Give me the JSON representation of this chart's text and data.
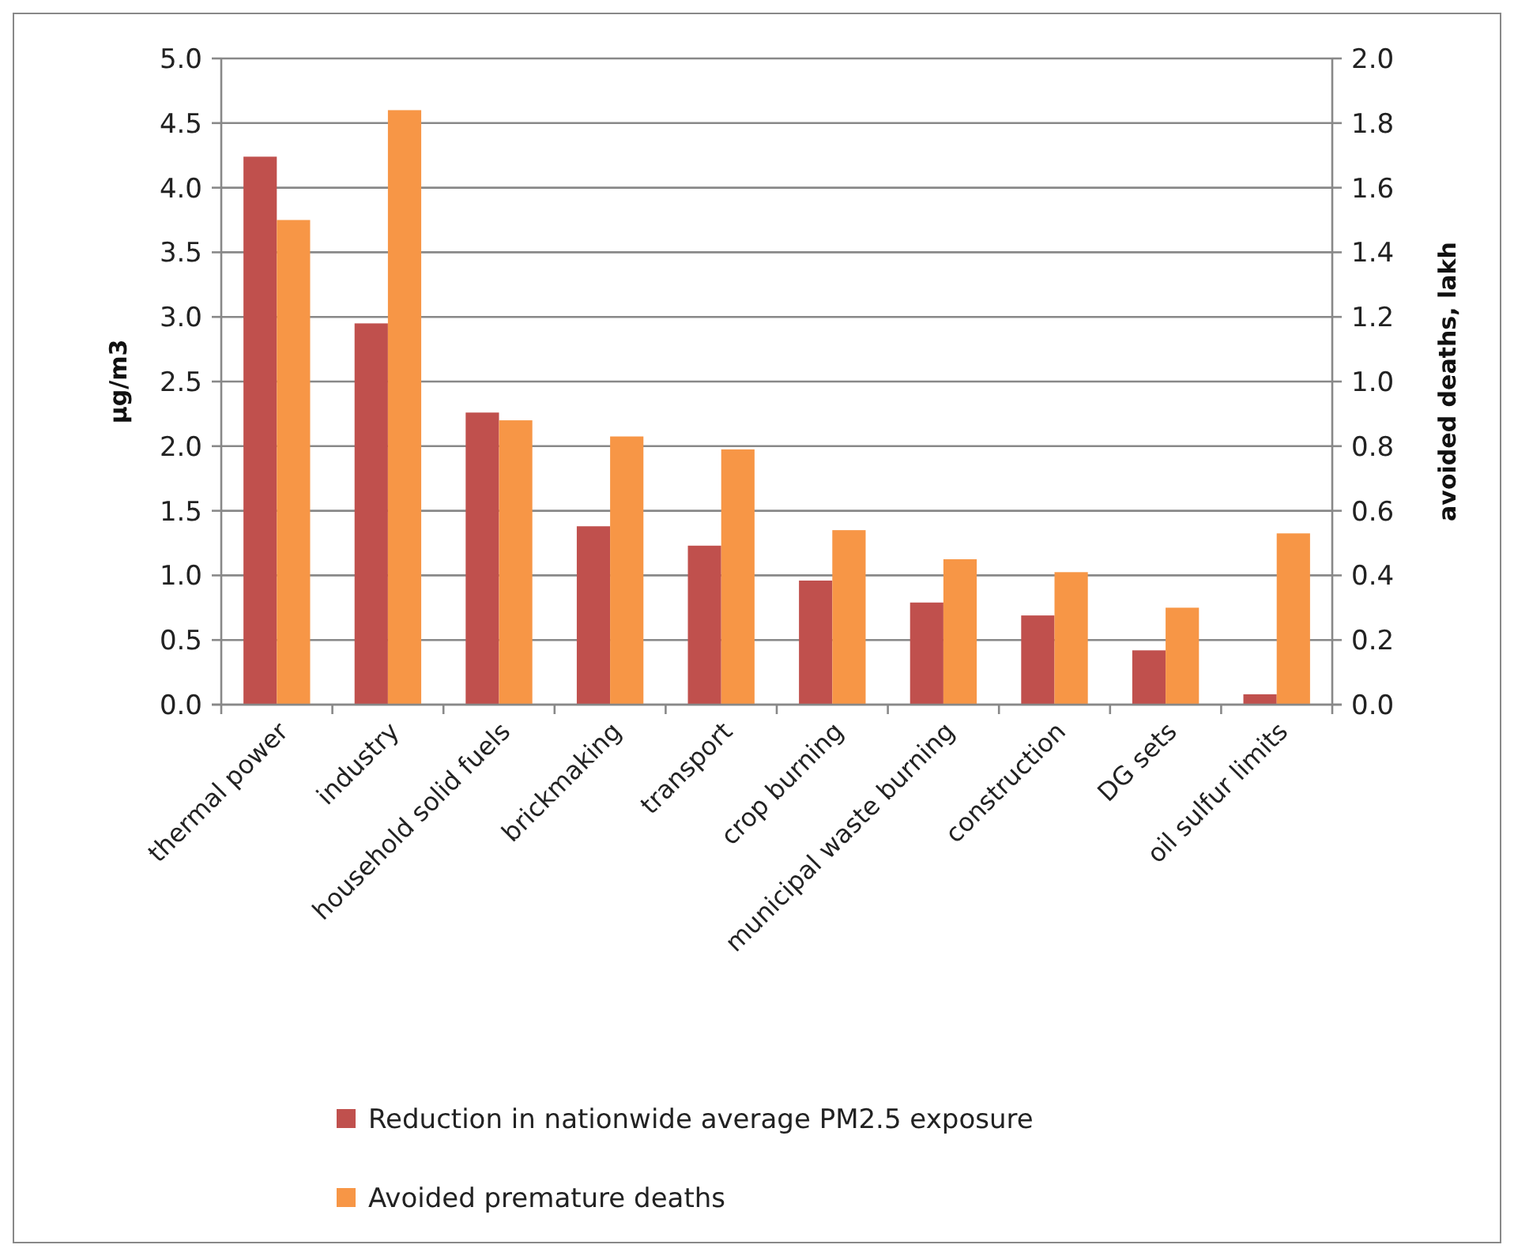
{
  "chart_data": {
    "type": "bar",
    "ylabel": "μg/m3",
    "y2label": "avoided deaths, lakh",
    "categories": [
      "thermal power",
      "industry",
      "household solid fuels",
      "brickmaking",
      "transport",
      "crop burning",
      "municipal waste burning",
      "construction",
      "DG sets",
      "oil sulfur limits"
    ],
    "series": [
      {
        "name": "Reduction in nationwide average PM2.5 exposure",
        "color": "#c0504d",
        "values": [
          4.24,
          2.95,
          2.26,
          1.38,
          1.23,
          0.96,
          0.79,
          0.69,
          0.42,
          0.08
        ]
      },
      {
        "name": "Avoided premature deaths",
        "color": "#f79646",
        "axis": "y2",
        "values": [
          1.5,
          1.84,
          0.88,
          0.83,
          0.79,
          0.54,
          0.45,
          0.41,
          0.3,
          0.53
        ]
      }
    ],
    "ylim": [
      0,
      5
    ],
    "yticks": [
      {
        "value": 0,
        "label": "0.0"
      },
      {
        "value": 0.5,
        "label": "0.5"
      },
      {
        "value": 1,
        "label": "1.0"
      },
      {
        "value": 1.5,
        "label": "1.5"
      },
      {
        "value": 2,
        "label": "2.0"
      },
      {
        "value": 2.5,
        "label": "2.5"
      },
      {
        "value": 3,
        "label": "3.0"
      },
      {
        "value": 3.5,
        "label": "3.5"
      },
      {
        "value": 4,
        "label": "4.0"
      },
      {
        "value": 4.5,
        "label": "4.5"
      },
      {
        "value": 5,
        "label": "5.0"
      }
    ],
    "y2lim": [
      0,
      2
    ],
    "y2ticks": [
      {
        "value": 0,
        "label": "0.0"
      },
      {
        "value": 0.2,
        "label": "0.2"
      },
      {
        "value": 0.4,
        "label": "0.4"
      },
      {
        "value": 0.6,
        "label": "0.6"
      },
      {
        "value": 0.8,
        "label": "0.8"
      },
      {
        "value": 1,
        "label": "1.0"
      },
      {
        "value": 1.2,
        "label": "1.2"
      },
      {
        "value": 1.4,
        "label": "1.4"
      },
      {
        "value": 1.6,
        "label": "1.6"
      },
      {
        "value": 1.8,
        "label": "1.8"
      },
      {
        "value": 2,
        "label": "2.0"
      }
    ],
    "grid": "y",
    "legend": "bottom"
  }
}
